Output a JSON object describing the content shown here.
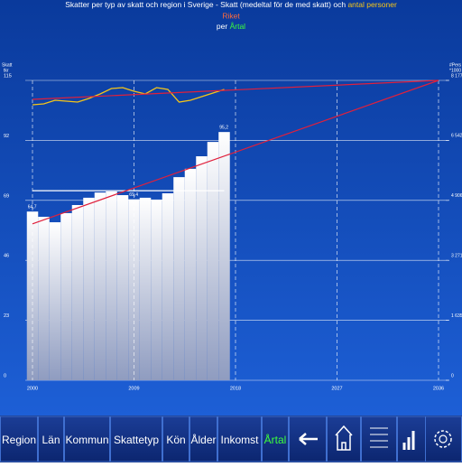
{
  "chart_data": {
    "type": "bar",
    "title": [
      "Skatter per typ av skatt och region i Sverige - Skatt (medeltal för de med skatt) och",
      "antal personer"
    ],
    "subtitle": "Riket",
    "subtitle2": [
      "per",
      "Årtal"
    ],
    "title_colors": [
      "#ffffff",
      "#f5c518",
      "#ff6a3a",
      "#ffffff",
      "#3cff3c"
    ],
    "ylabel": [
      "Skatt",
      "tkr"
    ],
    "y2label": [
      "#Pers",
      "*1000"
    ],
    "x": [
      2000,
      2001,
      2002,
      2003,
      2004,
      2005,
      2006,
      2007,
      2008,
      2009,
      2010,
      2011,
      2012,
      2013,
      2014,
      2015,
      2016,
      2017
    ],
    "xlim": [
      2000,
      2036
    ],
    "xticks": [
      2000,
      2009,
      2018,
      2027,
      2036
    ],
    "ylim": [
      0,
      115
    ],
    "yticks": [
      0,
      23,
      46,
      69,
      92,
      115
    ],
    "y2lim": [
      0,
      8177
    ],
    "y2ticks": [
      0,
      {
        "value": 1635,
        "label": "1 635"
      },
      {
        "value": 3271,
        "label": "3 271"
      },
      {
        "value": 4906,
        "label": "4 906"
      },
      {
        "value": 6542,
        "label": "6 542"
      },
      {
        "value": 8177,
        "label": "8 177"
      }
    ],
    "grid": true,
    "series": [
      {
        "type": "bar",
        "axis": "y",
        "color": "#ffffff",
        "values": [
          64.7,
          62.7,
          60.6,
          64.1,
          67.2,
          70.0,
          72.0,
          72.4,
          71.0,
          69.4,
          70.0,
          69.3,
          71.7,
          77.9,
          81.1,
          85.9,
          91.4,
          95.2
        ],
        "value_labels": [
          "64,7",
          null,
          null,
          null,
          null,
          null,
          null,
          null,
          null,
          "69,4",
          null,
          null,
          null,
          null,
          null,
          null,
          null,
          "95,2"
        ]
      },
      {
        "type": "line",
        "axis": "y2",
        "color": "#f5c518",
        "values": [
          7512,
          7537,
          7635,
          7611,
          7586,
          7685,
          7808,
          7955,
          7980,
          7882,
          7808,
          7980,
          7931,
          7586,
          7635,
          7734,
          7833,
          7931
        ]
      }
    ],
    "trend_lines": [
      {
        "axis": "y",
        "color": "#e0203c",
        "x": [
          2000,
          2036
        ],
        "values": [
          60,
          115
        ]
      },
      {
        "axis": "y2",
        "color": "#e0203c",
        "x": [
          2000,
          2036
        ],
        "values": [
          7660,
          8177
        ]
      }
    ],
    "average": {
      "axis": "y",
      "color": "#ffffff",
      "x": [
        2000,
        2017
      ],
      "value": 72.7
    }
  },
  "toolbar": {
    "buttons": [
      "Region",
      "Län",
      "Kommun",
      "Skattetyp",
      "Kön",
      "Ålder",
      "Inkomst",
      "Årtal"
    ],
    "active": 7
  }
}
